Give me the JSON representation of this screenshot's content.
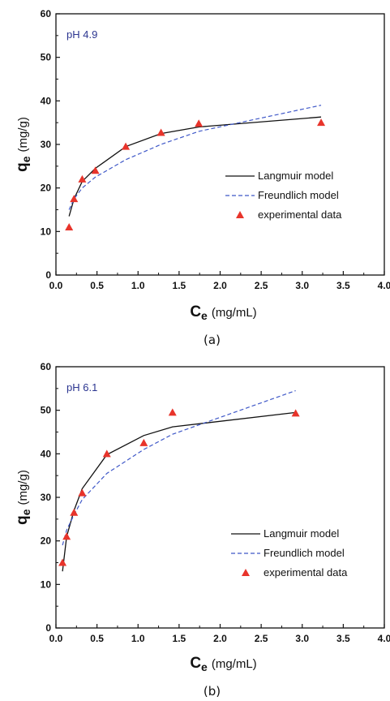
{
  "chart_data": [
    {
      "type": "line",
      "panel_label": "(a)",
      "annotation": "pH 4.9",
      "xlabel_main": "C",
      "xlabel_sub": "e",
      "xlabel_unit": "(mg/mL)",
      "ylabel_main": "q",
      "ylabel_sub": "e",
      "ylabel_unit": "(mg/g)",
      "xlim": [
        0,
        4.0
      ],
      "ylim": [
        0,
        60
      ],
      "x_ticks": [
        "0.0",
        "0.5",
        "1.0",
        "1.5",
        "2.0",
        "2.5",
        "3.0",
        "3.5",
        "4.0"
      ],
      "y_ticks": [
        "0",
        "10",
        "20",
        "30",
        "40",
        "50",
        "60"
      ],
      "legend": [
        "Langmuir model",
        "Freundlich model",
        "experimental data"
      ],
      "series": [
        {
          "name": "Langmuir model",
          "style": "solid",
          "color": "#111111",
          "points": [
            [
              0.16,
              13.5
            ],
            [
              0.22,
              17.5
            ],
            [
              0.32,
              21.5
            ],
            [
              0.48,
              24.5
            ],
            [
              0.85,
              29.5
            ],
            [
              1.28,
              32.5
            ],
            [
              1.74,
              34.0
            ],
            [
              3.23,
              36.3
            ]
          ]
        },
        {
          "name": "Freundlich model",
          "style": "dashed",
          "color": "#3f58c8",
          "points": [
            [
              0.16,
              15.0
            ],
            [
              0.22,
              17.5
            ],
            [
              0.32,
              20.0
            ],
            [
              0.48,
              22.5
            ],
            [
              0.85,
              26.5
            ],
            [
              1.28,
              30.0
            ],
            [
              1.74,
              33.0
            ],
            [
              3.23,
              39.0
            ]
          ]
        },
        {
          "name": "experimental data",
          "style": "marker",
          "color": "#e8342b",
          "points": [
            [
              0.16,
              11.0
            ],
            [
              0.22,
              17.5
            ],
            [
              0.32,
              22.0
            ],
            [
              0.48,
              24.0
            ],
            [
              0.85,
              29.5
            ],
            [
              1.28,
              32.7
            ],
            [
              1.74,
              34.8
            ],
            [
              3.23,
              35.0
            ]
          ]
        }
      ]
    },
    {
      "type": "line",
      "panel_label": "(b)",
      "annotation": "pH 6.1",
      "xlabel_main": "C",
      "xlabel_sub": "e",
      "xlabel_unit": "(mg/mL)",
      "ylabel_main": "q",
      "ylabel_sub": "e",
      "ylabel_unit": "(mg/g)",
      "xlim": [
        0,
        4.0
      ],
      "ylim": [
        0,
        60
      ],
      "x_ticks": [
        "0.0",
        "0.5",
        "1.0",
        "1.5",
        "2.0",
        "2.5",
        "3.0",
        "3.5",
        "4.0"
      ],
      "y_ticks": [
        "0",
        "10",
        "20",
        "30",
        "40",
        "50",
        "60"
      ],
      "legend": [
        "Langmuir model",
        "Freundlich model",
        "experimental data"
      ],
      "series": [
        {
          "name": "Langmuir model",
          "style": "solid",
          "color": "#111111",
          "points": [
            [
              0.08,
              13.0
            ],
            [
              0.13,
              21.0
            ],
            [
              0.22,
              27.0
            ],
            [
              0.32,
              32.0
            ],
            [
              0.62,
              39.8
            ],
            [
              1.07,
              44.2
            ],
            [
              1.42,
              46.2
            ],
            [
              2.92,
              49.5
            ]
          ]
        },
        {
          "name": "Freundlich model",
          "style": "dashed",
          "color": "#3f58c8",
          "points": [
            [
              0.08,
              19.0
            ],
            [
              0.13,
              22.5
            ],
            [
              0.22,
              26.0
            ],
            [
              0.32,
              29.5
            ],
            [
              0.62,
              35.5
            ],
            [
              1.07,
              41.0
            ],
            [
              1.42,
              44.5
            ],
            [
              2.92,
              54.5
            ]
          ]
        },
        {
          "name": "experimental data",
          "style": "marker",
          "color": "#e8342b",
          "points": [
            [
              0.08,
              15.0
            ],
            [
              0.13,
              21.0
            ],
            [
              0.22,
              26.5
            ],
            [
              0.32,
              31.0
            ],
            [
              0.62,
              40.0
            ],
            [
              1.07,
              42.5
            ],
            [
              1.42,
              49.5
            ],
            [
              2.92,
              49.3
            ]
          ]
        }
      ]
    }
  ]
}
